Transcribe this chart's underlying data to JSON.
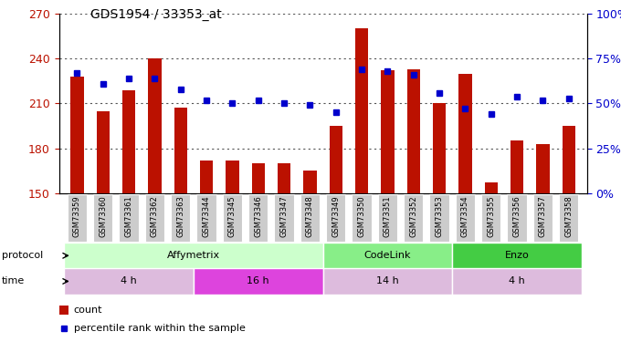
{
  "title": "GDS1954 / 33353_at",
  "samples": [
    "GSM73359",
    "GSM73360",
    "GSM73361",
    "GSM73362",
    "GSM73363",
    "GSM73344",
    "GSM73345",
    "GSM73346",
    "GSM73347",
    "GSM73348",
    "GSM73349",
    "GSM73350",
    "GSM73351",
    "GSM73352",
    "GSM73353",
    "GSM73354",
    "GSM73355",
    "GSM73356",
    "GSM73357",
    "GSM73358"
  ],
  "counts": [
    228,
    205,
    219,
    240,
    207,
    172,
    172,
    170,
    170,
    165,
    195,
    260,
    232,
    233,
    210,
    230,
    157,
    185,
    183,
    195
  ],
  "percentiles": [
    67,
    61,
    64,
    64,
    58,
    52,
    50,
    52,
    50,
    49,
    45,
    69,
    68,
    66,
    56,
    47,
    44,
    54,
    52,
    53
  ],
  "ylim_left": [
    150,
    270
  ],
  "ylim_right": [
    0,
    100
  ],
  "yticks_left": [
    150,
    180,
    210,
    240,
    270
  ],
  "yticks_right": [
    0,
    25,
    50,
    75,
    100
  ],
  "protocol_groups": [
    {
      "label": "Affymetrix",
      "start": 0,
      "end": 9,
      "color": "#ccffcc"
    },
    {
      "label": "CodeLink",
      "start": 10,
      "end": 14,
      "color": "#88ee88"
    },
    {
      "label": "Enzo",
      "start": 15,
      "end": 19,
      "color": "#44cc44"
    }
  ],
  "time_groups": [
    {
      "label": "4 h",
      "start": 0,
      "end": 4,
      "color": "#ddbbdd"
    },
    {
      "label": "16 h",
      "start": 5,
      "end": 9,
      "color": "#dd44dd"
    },
    {
      "label": "14 h",
      "start": 10,
      "end": 14,
      "color": "#ddbbdd"
    },
    {
      "label": "4 h",
      "start": 15,
      "end": 19,
      "color": "#ddbbdd"
    }
  ],
  "bar_color": "#bb1100",
  "dot_color": "#0000cc",
  "bar_width": 0.5,
  "grid_color": "#555555",
  "tick_bg": "#cccccc",
  "legend_count_color": "#bb1100",
  "legend_dot_color": "#0000cc"
}
